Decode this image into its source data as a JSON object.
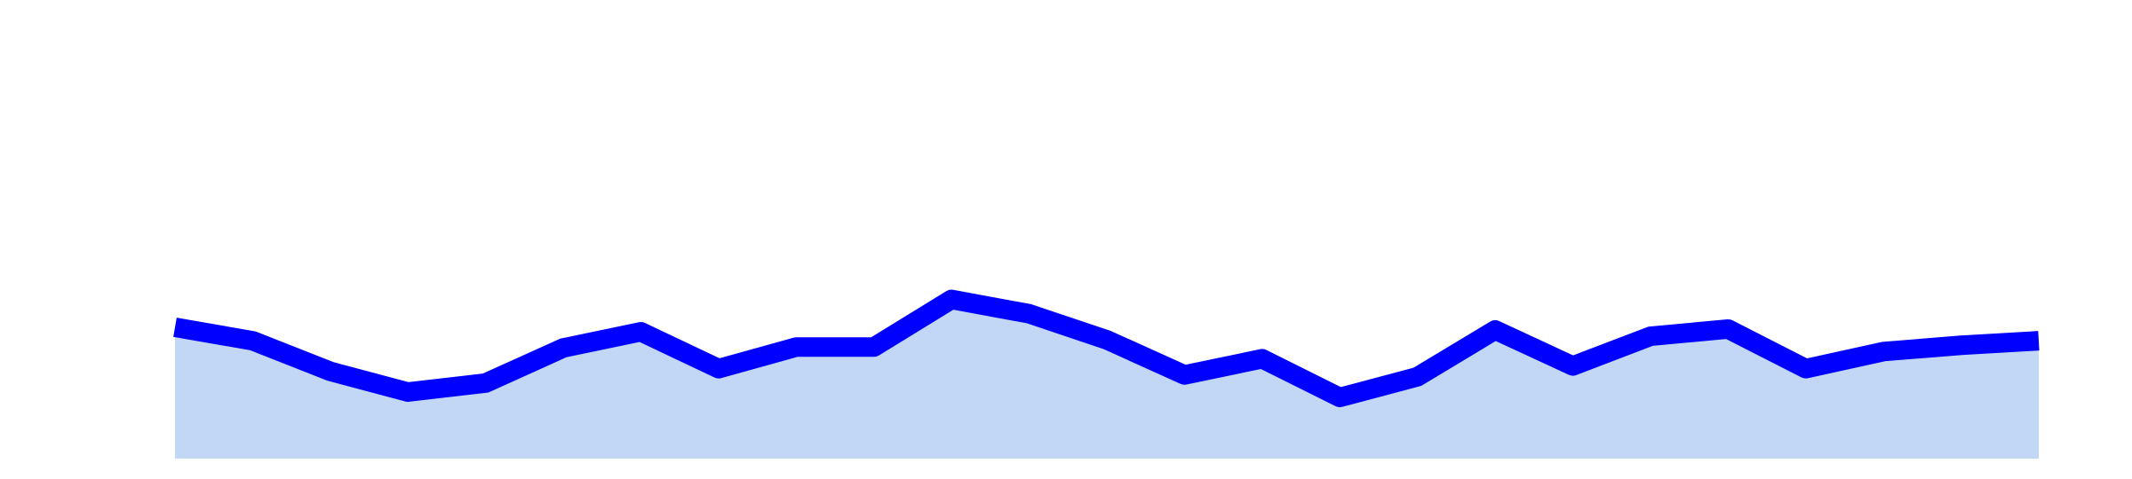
{
  "chart_data": {
    "type": "area",
    "x": [
      1,
      2,
      3,
      4,
      5,
      6,
      7,
      8,
      9,
      10,
      11,
      12,
      13,
      14,
      15,
      16,
      17,
      18,
      19,
      20,
      21,
      22,
      23,
      24,
      25
    ],
    "series": [
      {
        "values": [
          146,
          131,
          97,
          74,
          84,
          123,
          141,
          100,
          124,
          124,
          177,
          161,
          132,
          93,
          111,
          68,
          91,
          143,
          103,
          136,
          144,
          100,
          119,
          126,
          131
        ]
      }
    ],
    "ylim": [
      0,
      500
    ],
    "grid": false,
    "legend": "none",
    "colors": {
      "line": "#0000ff",
      "fill": "#c2d6f6",
      "background": "#ffffff"
    }
  }
}
